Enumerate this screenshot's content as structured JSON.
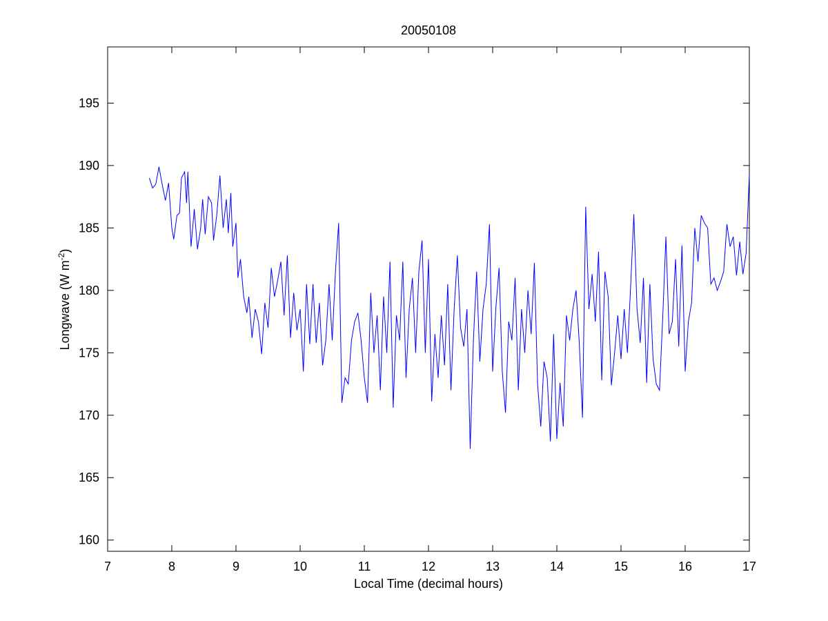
{
  "chart_data": {
    "type": "line",
    "title": "20050108",
    "xlabel": "Local Time (decimal hours)",
    "ylabel": [
      "Longwave (W m",
      "-2",
      ")"
    ],
    "xlim": [
      7,
      17
    ],
    "ylim": [
      159.1,
      199.5
    ],
    "xticks": [
      7,
      8,
      9,
      10,
      11,
      12,
      13,
      14,
      15,
      16,
      17
    ],
    "yticks": [
      160,
      165,
      170,
      175,
      180,
      185,
      190,
      195
    ],
    "grid": false,
    "x": [
      7.65,
      7.7,
      7.75,
      7.8,
      7.85,
      7.9,
      7.95,
      8.0,
      8.03,
      8.08,
      8.12,
      8.15,
      8.2,
      8.23,
      8.25,
      8.3,
      8.35,
      8.4,
      8.45,
      8.48,
      8.52,
      8.57,
      8.62,
      8.65,
      8.7,
      8.75,
      8.8,
      8.85,
      8.88,
      8.92,
      8.95,
      9.0,
      9.03,
      9.07,
      9.12,
      9.17,
      9.2,
      9.25,
      9.3,
      9.35,
      9.4,
      9.45,
      9.5,
      9.55,
      9.6,
      9.65,
      9.7,
      9.75,
      9.8,
      9.85,
      9.9,
      9.95,
      10.0,
      10.05,
      10.1,
      10.15,
      10.2,
      10.25,
      10.3,
      10.35,
      10.4,
      10.45,
      10.5,
      10.55,
      10.6,
      10.65,
      10.7,
      10.75,
      10.8,
      10.85,
      10.9,
      10.95,
      11.0,
      11.05,
      11.1,
      11.15,
      11.2,
      11.25,
      11.3,
      11.35,
      11.4,
      11.45,
      11.5,
      11.55,
      11.6,
      11.65,
      11.7,
      11.75,
      11.8,
      11.85,
      11.9,
      11.95,
      12.0,
      12.05,
      12.1,
      12.15,
      12.2,
      12.25,
      12.3,
      12.35,
      12.4,
      12.45,
      12.5,
      12.55,
      12.6,
      12.65,
      12.7,
      12.75,
      12.8,
      12.85,
      12.9,
      12.95,
      13.0,
      13.05,
      13.1,
      13.15,
      13.2,
      13.25,
      13.3,
      13.35,
      13.4,
      13.45,
      13.5,
      13.55,
      13.6,
      13.65,
      13.7,
      13.75,
      13.8,
      13.85,
      13.9,
      13.95,
      14.0,
      14.05,
      14.1,
      14.15,
      14.2,
      14.25,
      14.3,
      14.35,
      14.4,
      14.45,
      14.5,
      14.55,
      14.6,
      14.65,
      14.7,
      14.75,
      14.8,
      14.85,
      14.9,
      14.95,
      15.0,
      15.05,
      15.1,
      15.15,
      15.2,
      15.25,
      15.3,
      15.35,
      15.4,
      15.45,
      15.5,
      15.55,
      15.6,
      15.65,
      15.7,
      15.75,
      15.8,
      15.85,
      15.9,
      15.95,
      16.0,
      16.05,
      16.1,
      16.15,
      16.2,
      16.25,
      16.3,
      16.35,
      16.4,
      16.45,
      16.5,
      16.55,
      16.6,
      16.65,
      16.7,
      16.75,
      16.8,
      16.85,
      16.9,
      16.95,
      17.0
    ],
    "series": [
      {
        "color": "#0000ff",
        "values": [
          189,
          188.2,
          188.5,
          189.9,
          188.5,
          187.2,
          188.6,
          185,
          184.1,
          186,
          186.2,
          189,
          189.5,
          187,
          189.5,
          183.5,
          186.5,
          183.3,
          185,
          187.3,
          184.5,
          187.5,
          187,
          184,
          186,
          189.2,
          185,
          187.3,
          184.6,
          187.8,
          183.5,
          185.4,
          181,
          182.5,
          179.5,
          178.2,
          179.5,
          176.2,
          178.5,
          177.5,
          174.9,
          179,
          177,
          181.8,
          179.5,
          180.8,
          182.3,
          178,
          182.8,
          176.2,
          179.8,
          176.8,
          178.5,
          173.5,
          180.5,
          175.7,
          180.5,
          175.8,
          179,
          174,
          176,
          180.5,
          176,
          181.5,
          185.4,
          171,
          173,
          172.5,
          176,
          177.5,
          178.2,
          176,
          173,
          171,
          179.8,
          175,
          178,
          172,
          179.5,
          175,
          182.3,
          170.6,
          178,
          176,
          182.3,
          173,
          178.5,
          181,
          175,
          181.5,
          184,
          175,
          182.5,
          171.1,
          176.5,
          173,
          178,
          174,
          180.5,
          172,
          178.5,
          182.8,
          177,
          175.5,
          178.5,
          167.3,
          176,
          181.5,
          174.3,
          178.5,
          180.5,
          185.3,
          173.5,
          178.6,
          181.8,
          173.5,
          170.2,
          177.5,
          176,
          181,
          172,
          178.5,
          175,
          180,
          176.5,
          182.2,
          172.5,
          169.1,
          174.3,
          173,
          167.9,
          176.5,
          168.1,
          172.6,
          169.1,
          178,
          176,
          178.5,
          180,
          175.8,
          169.8,
          186.7,
          178.5,
          181.3,
          177.5,
          183.1,
          172.8,
          181.5,
          179.5,
          172.4,
          175,
          178,
          174.5,
          178.5,
          175,
          180.3,
          186.1,
          178.5,
          175.8,
          181,
          172.6,
          180.5,
          174.5,
          172.5,
          172,
          177.8,
          184.3,
          176.5,
          177.5,
          182.5,
          175.5,
          183.6,
          173.5,
          177.5,
          179,
          185,
          182.3,
          186,
          185.4,
          185,
          180.5,
          181,
          180,
          180.7,
          181.5,
          185.3,
          183.5,
          184.3,
          181.2,
          183.9,
          181.3,
          183,
          189.3
        ]
      }
    ]
  }
}
